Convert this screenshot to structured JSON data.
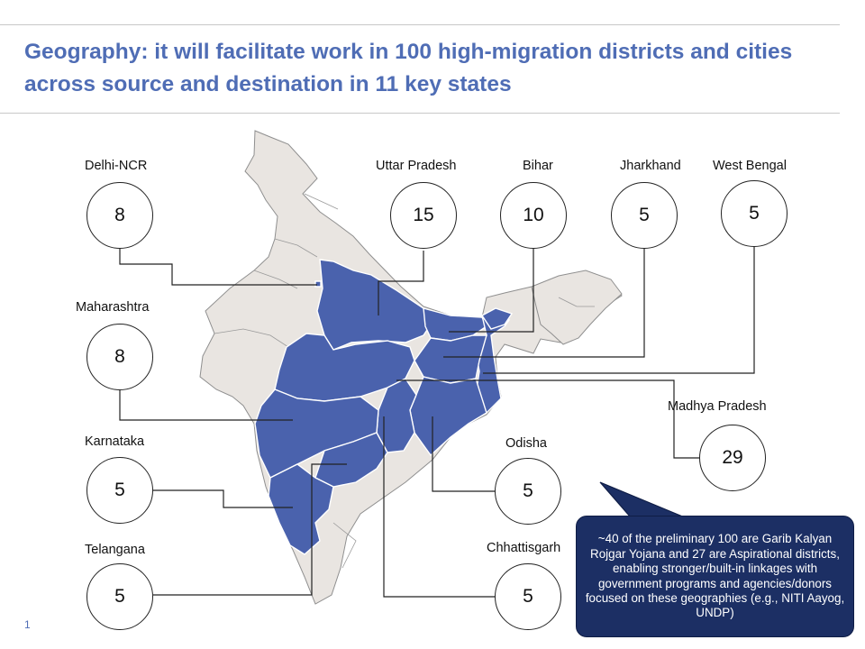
{
  "title": "Geography: it will facilitate work in 100 high-migration districts and cities across source and destination in 11 key states",
  "states": [
    {
      "name": "Delhi-NCR",
      "count": "8"
    },
    {
      "name": "Uttar Pradesh",
      "count": "15"
    },
    {
      "name": "Bihar",
      "count": "10"
    },
    {
      "name": "Jharkhand",
      "count": "5"
    },
    {
      "name": "West Bengal",
      "count": "5"
    },
    {
      "name": "Maharashtra",
      "count": "8"
    },
    {
      "name": "Madhya Pradesh",
      "count": "29"
    },
    {
      "name": "Karnataka",
      "count": "5"
    },
    {
      "name": "Odisha",
      "count": "5"
    },
    {
      "name": "Telangana",
      "count": "5"
    },
    {
      "name": "Chhattisgarh",
      "count": "5"
    }
  ],
  "callout": "~40 of the preliminary 100 are Garib Kalyan Rojgar Yojana and 27 are Aspirational districts, enabling stronger/built-in linkages with government programs and agencies/donors focused on these geographies (e.g., NITI Aayog, UNDP)",
  "page_number": "1",
  "colors": {
    "title": "#4f6db5",
    "highlight": "#4a62ad",
    "land": "#e9e5e1",
    "callout": "#1c2f64"
  }
}
